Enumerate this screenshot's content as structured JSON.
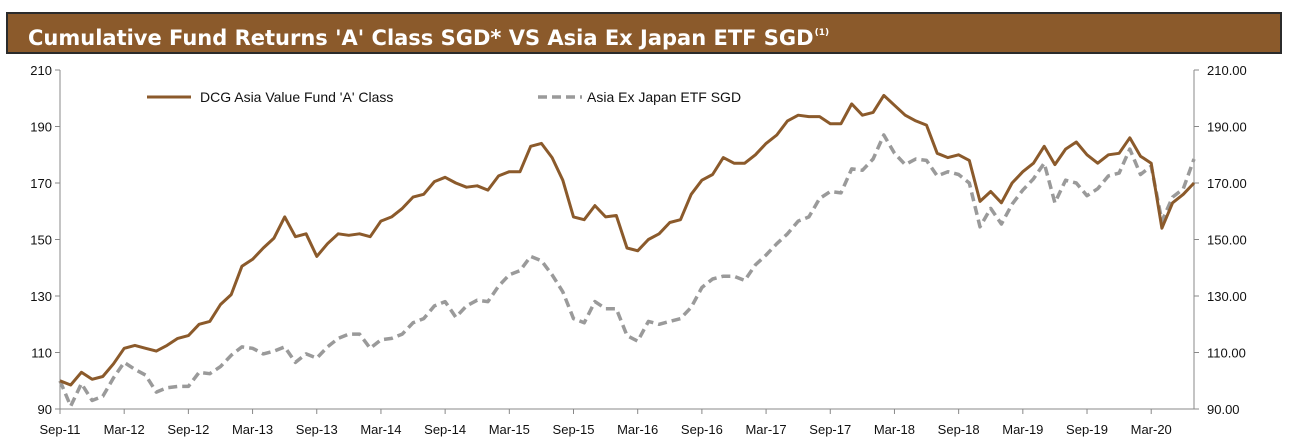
{
  "header": {
    "title": "Cumulative Fund Returns 'A' Class SGD* VS Asia Ex Japan ETF SGD",
    "title_sup": "(1)"
  },
  "colors": {
    "banner": "#8B5A2B",
    "fund": "#8B5A2B",
    "etf": "#9a9a9a"
  },
  "chart_data": {
    "type": "line",
    "title": "Cumulative Fund Returns 'A' Class SGD* VS Asia Ex Japan ETF SGD(1)",
    "ylim": [
      90,
      210
    ],
    "y_ticks_left": [
      "90",
      "110",
      "130",
      "150",
      "170",
      "190",
      "210"
    ],
    "y_ticks_right": [
      "90.00",
      "110.00",
      "130.00",
      "150.00",
      "170.00",
      "190.00",
      "210.00"
    ],
    "x_ticks": [
      "Sep-11",
      "Mar-12",
      "Sep-12",
      "Mar-13",
      "Sep-13",
      "Mar-14",
      "Sep-14",
      "Mar-15",
      "Sep-15",
      "Mar-16",
      "Sep-16",
      "Mar-17",
      "Sep-17",
      "Mar-18",
      "Sep-18",
      "Mar-19",
      "Sep-19",
      "Mar-20"
    ],
    "legend": {
      "position": "top-left"
    },
    "grid": false,
    "series": [
      {
        "name": "DCG Asia Value Fund 'A' Class",
        "style": "solid",
        "values": [
          100,
          98.5,
          103,
          100.5,
          101.5,
          106,
          111.5,
          112.5,
          111.5,
          110.5,
          112.5,
          115,
          116,
          120,
          121,
          127,
          130.5,
          140.5,
          143,
          147,
          150.5,
          158,
          151,
          152,
          144,
          148.5,
          152,
          151.5,
          152,
          151,
          156.5,
          158,
          161,
          165,
          166,
          170.5,
          172,
          170,
          168.5,
          169,
          167.5,
          172.5,
          174,
          174,
          183,
          184,
          179,
          171,
          158,
          157,
          162,
          158,
          158.5,
          147,
          146,
          150,
          152,
          156,
          157,
          166,
          171,
          173,
          179,
          177,
          177,
          180,
          184,
          187,
          192,
          194,
          193.5,
          193.5,
          191,
          191,
          198,
          194,
          195,
          201,
          197.5,
          194,
          192,
          190.5,
          180.5,
          179,
          180,
          178,
          163.5,
          167,
          163,
          170,
          174,
          177,
          183,
          176.5,
          182,
          184.5,
          180,
          177,
          180,
          180.5,
          186,
          179.5,
          177,
          154,
          163,
          166,
          170
        ]
      },
      {
        "name": "Asia Ex Japan ETF SGD",
        "style": "dashed",
        "values": [
          100,
          91,
          99,
          93,
          94.5,
          101,
          106.5,
          104,
          102,
          96,
          97.5,
          98,
          98,
          103,
          102.5,
          105,
          109,
          112,
          111.5,
          109.5,
          110.5,
          112,
          106.5,
          109.5,
          108,
          112,
          115,
          116.5,
          116.5,
          111.5,
          114.5,
          115,
          116.5,
          120.5,
          122,
          126.5,
          128,
          122.5,
          126.5,
          128.5,
          128,
          133.5,
          137.5,
          139,
          144,
          142.5,
          137.5,
          131.5,
          122,
          120.5,
          128,
          125.5,
          125.5,
          116,
          114,
          121,
          120,
          121,
          122,
          126,
          133,
          136,
          137,
          137,
          135.5,
          141,
          144.5,
          148.5,
          152,
          156.5,
          158,
          164.5,
          167,
          166.5,
          175,
          174.5,
          178.5,
          187,
          180.5,
          176.5,
          178.5,
          178,
          172.5,
          174,
          173,
          170,
          154.5,
          161,
          155.5,
          162.5,
          167.5,
          171.5,
          177,
          163,
          171,
          170,
          165.5,
          168,
          172.5,
          173.5,
          182,
          173,
          176,
          156.5,
          165,
          168,
          178.5
        ]
      }
    ]
  }
}
